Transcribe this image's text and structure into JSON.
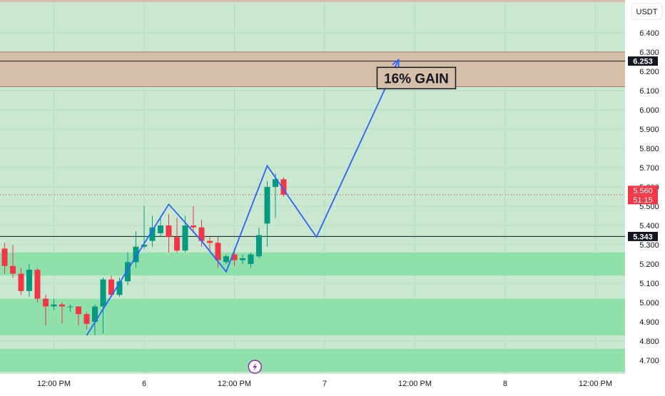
{
  "chart_data": {
    "type": "candlestick",
    "symbol_currency": "USDT",
    "colors": {
      "plot_bg": "#c9e8cf",
      "axis_bg": "#ffffff",
      "zone_green": "#8fe0ab",
      "zone_resistance": "#d6bfa9",
      "zone_resistance_border": "#b27a6a",
      "candle_up": "#089981",
      "candle_down": "#f23645",
      "projection_line": "#2962ff",
      "horizontal_line": "#131722",
      "label_dark": "#131722",
      "label_price": "#f23645"
    },
    "y_axis": {
      "ticks": [
        "6.400",
        "6.300",
        "6.200",
        "6.100",
        "6.000",
        "5.900",
        "5.800",
        "5.700",
        "5.600",
        "5.500",
        "5.400",
        "5.300",
        "5.200",
        "5.100",
        "5.000",
        "4.900",
        "4.800",
        "4.700"
      ],
      "range": [
        4.63,
        6.57
      ],
      "grid": true
    },
    "x_axis": {
      "ticks": [
        {
          "label": "12:00 PM",
          "slot": -11
        },
        {
          "label": "6",
          "slot": 0
        },
        {
          "label": "12:00 PM",
          "slot": 11
        },
        {
          "label": "7",
          "slot": 22
        },
        {
          "label": "12:00 PM",
          "slot": 33
        },
        {
          "label": "8",
          "slot": 44
        },
        {
          "label": "12:00 PM",
          "slot": 55
        }
      ]
    },
    "candles": [
      {
        "slot": -17,
        "o": 5.28,
        "h": 5.31,
        "l": 5.15,
        "c": 5.19
      },
      {
        "slot": -16,
        "o": 5.19,
        "h": 5.3,
        "l": 5.13,
        "c": 5.15
      },
      {
        "slot": -15,
        "o": 5.15,
        "h": 5.18,
        "l": 5.04,
        "c": 5.06
      },
      {
        "slot": -14,
        "o": 5.06,
        "h": 5.2,
        "l": 5.03,
        "c": 5.17
      },
      {
        "slot": -13,
        "o": 5.17,
        "h": 5.18,
        "l": 5.0,
        "c": 5.02
      },
      {
        "slot": -12,
        "o": 5.02,
        "h": 5.04,
        "l": 4.88,
        "c": 4.98
      },
      {
        "slot": -11,
        "o": 4.98,
        "h": 5.02,
        "l": 4.96,
        "c": 4.99
      },
      {
        "slot": -10,
        "o": 4.99,
        "h": 5.0,
        "l": 4.89,
        "c": 4.98
      },
      {
        "slot": -9,
        "o": 4.98,
        "h": 4.99,
        "l": 4.95,
        "c": 4.98
      },
      {
        "slot": -8,
        "o": 4.98,
        "h": 4.98,
        "l": 4.88,
        "c": 4.94
      },
      {
        "slot": -7,
        "o": 4.94,
        "h": 4.95,
        "l": 4.86,
        "c": 4.89
      },
      {
        "slot": -6,
        "o": 4.9,
        "h": 4.99,
        "l": 4.83,
        "c": 4.98
      },
      {
        "slot": -5,
        "o": 4.98,
        "h": 5.13,
        "l": 4.84,
        "c": 5.12
      },
      {
        "slot": -4,
        "o": 5.12,
        "h": 5.14,
        "l": 5.03,
        "c": 5.04
      },
      {
        "slot": -3,
        "o": 5.04,
        "h": 5.13,
        "l": 5.03,
        "c": 5.11
      },
      {
        "slot": -2,
        "o": 5.11,
        "h": 5.26,
        "l": 5.09,
        "c": 5.21
      },
      {
        "slot": -1,
        "o": 5.21,
        "h": 5.37,
        "l": 5.18,
        "c": 5.29
      },
      {
        "slot": 0,
        "o": 5.29,
        "h": 5.5,
        "l": 5.28,
        "c": 5.3
      },
      {
        "slot": 1,
        "o": 5.32,
        "h": 5.45,
        "l": 5.29,
        "c": 5.39
      },
      {
        "slot": 2,
        "o": 5.36,
        "h": 5.45,
        "l": 5.34,
        "c": 5.4
      },
      {
        "slot": 3,
        "o": 5.4,
        "h": 5.46,
        "l": 5.26,
        "c": 5.34
      },
      {
        "slot": 4,
        "o": 5.34,
        "h": 5.44,
        "l": 5.26,
        "c": 5.27
      },
      {
        "slot": 5,
        "o": 5.27,
        "h": 5.45,
        "l": 5.26,
        "c": 5.4
      },
      {
        "slot": 6,
        "o": 5.4,
        "h": 5.5,
        "l": 5.36,
        "c": 5.39
      },
      {
        "slot": 7,
        "o": 5.39,
        "h": 5.43,
        "l": 5.29,
        "c": 5.32
      },
      {
        "slot": 8,
        "o": 5.32,
        "h": 5.34,
        "l": 5.27,
        "c": 5.31
      },
      {
        "slot": 9,
        "o": 5.31,
        "h": 5.34,
        "l": 5.18,
        "c": 5.22
      },
      {
        "slot": 10,
        "o": 5.21,
        "h": 5.25,
        "l": 5.2,
        "c": 5.24
      },
      {
        "slot": 11,
        "o": 5.25,
        "h": 5.28,
        "l": 5.19,
        "c": 5.22
      },
      {
        "slot": 12,
        "o": 5.22,
        "h": 5.25,
        "l": 5.2,
        "c": 5.23
      },
      {
        "slot": 13,
        "o": 5.2,
        "h": 5.26,
        "l": 5.18,
        "c": 5.25
      },
      {
        "slot": 14,
        "o": 5.24,
        "h": 5.39,
        "l": 5.23,
        "c": 5.35
      },
      {
        "slot": 15,
        "o": 5.41,
        "h": 5.63,
        "l": 5.29,
        "c": 5.6
      },
      {
        "slot": 16,
        "o": 5.6,
        "h": 5.67,
        "l": 5.44,
        "c": 5.64
      },
      {
        "slot": 17,
        "o": 5.64,
        "h": 5.65,
        "l": 5.55,
        "c": 5.56
      }
    ],
    "zones": [
      {
        "name": "resistance",
        "y_low": 6.12,
        "y_high": 6.3
      },
      {
        "name": "support-1",
        "y_low": 5.14,
        "y_high": 5.26
      },
      {
        "name": "support-2",
        "y_low": 4.83,
        "y_high": 5.02
      },
      {
        "name": "support-3",
        "y_low": 4.64,
        "y_high": 4.76
      }
    ],
    "horizontal_lines": [
      {
        "name": "target",
        "y": 6.253
      },
      {
        "name": "support-level",
        "y": 5.343
      }
    ],
    "current_price_line": 5.56,
    "projection_path": [
      {
        "slot": -7,
        "y": 4.83
      },
      {
        "slot": 3,
        "y": 5.51
      },
      {
        "slot": 7,
        "y": 5.32
      },
      {
        "slot": 10,
        "y": 5.16
      },
      {
        "slot": 15,
        "y": 5.71
      },
      {
        "slot": 21,
        "y": 5.34
      },
      {
        "slot": 31,
        "y": 6.26
      }
    ],
    "price_labels": [
      {
        "text": "6.253",
        "kind": "dark",
        "y": 6.253
      },
      {
        "text": "5.560",
        "kind": "price",
        "y": 5.56
      },
      {
        "text": "51:15",
        "kind": "price",
        "y": 5.56
      },
      {
        "text": "5.343",
        "kind": "dark",
        "y": 5.343
      }
    ],
    "annotation": {
      "text": "16% GAIN",
      "slot": 33,
      "y": 6.165
    },
    "flash_icon": "lightning-icon"
  }
}
